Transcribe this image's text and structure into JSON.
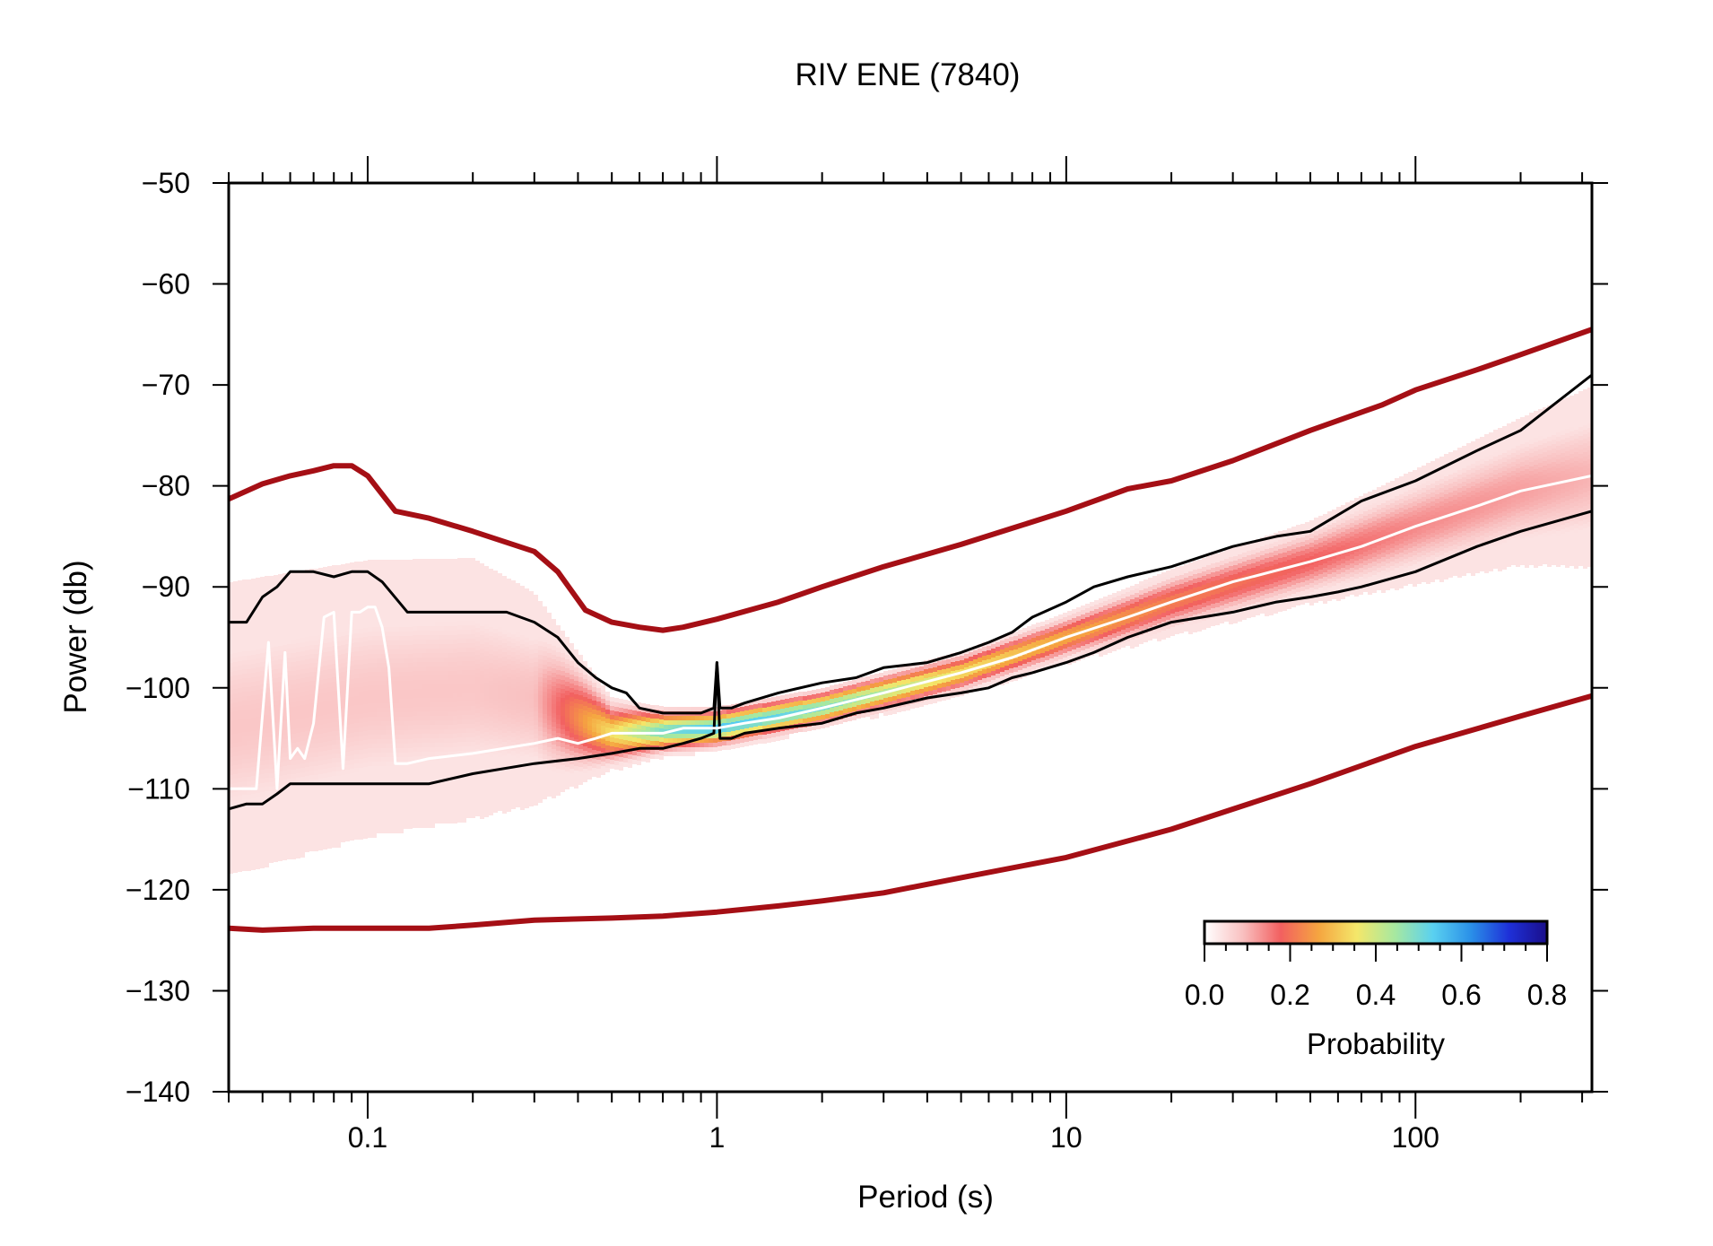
{
  "chart_data": {
    "type": "line",
    "title": "RIV ENE (7840)",
    "xlabel": "Period (s)",
    "ylabel": "Power (db)",
    "xscale": "log",
    "xlim": [
      0.04,
      320
    ],
    "ylim": [
      -140,
      -50
    ],
    "grid": false,
    "x_tick_labels": [
      "0.1",
      "1",
      "10",
      "100"
    ],
    "x_tick_values": [
      0.1,
      1,
      10,
      100
    ],
    "y_tick_labels": [
      "−50",
      "−60",
      "−70",
      "−80",
      "−90",
      "−100",
      "−110",
      "−120",
      "−130",
      "−140"
    ],
    "y_tick_values": [
      -50,
      -60,
      -70,
      -80,
      -90,
      -100,
      -110,
      -120,
      -130,
      -140
    ],
    "colorbar": {
      "title": "Probability",
      "position": "bottom-right",
      "range": [
        0,
        0.8
      ],
      "tick_labels": [
        "0.0",
        "0.2",
        "0.4",
        "0.6",
        "0.8"
      ],
      "tick_values": [
        0,
        0.2,
        0.4,
        0.6,
        0.8
      ],
      "colors": [
        "#ffffff",
        "#f9c1c1",
        "#f26060",
        "#f5a540",
        "#f4e76a",
        "#a7e8a0",
        "#5ad1f0",
        "#2a90e8",
        "#1e30d8",
        "#1a0e8a"
      ]
    },
    "series": [
      {
        "role": "high-noise-model",
        "color": "#a50f15",
        "x": [
          0.04,
          0.05,
          0.06,
          0.07,
          0.08,
          0.09,
          0.1,
          0.12,
          0.15,
          0.2,
          0.3,
          0.35,
          0.42,
          0.5,
          0.6,
          0.7,
          0.8,
          1,
          1.5,
          2,
          3,
          5,
          7,
          10,
          15,
          20,
          30,
          50,
          80,
          100,
          150,
          200,
          320
        ],
        "values": [
          -81.3,
          -79.8,
          -79,
          -78.5,
          -78,
          -78,
          -79,
          -82.5,
          -83.2,
          -84.5,
          -86.5,
          -88.5,
          -92.3,
          -93.5,
          -94,
          -94.3,
          -94,
          -93.2,
          -91.5,
          -90,
          -88,
          -85.8,
          -84.2,
          -82.5,
          -80.3,
          -79.5,
          -77.5,
          -74.5,
          -72,
          -70.5,
          -68.5,
          -67,
          -64.5
        ]
      },
      {
        "role": "low-noise-model",
        "color": "#a50f15",
        "x": [
          0.04,
          0.05,
          0.07,
          0.1,
          0.15,
          0.2,
          0.3,
          0.5,
          0.7,
          1,
          1.5,
          2,
          3,
          5,
          10,
          20,
          50,
          100,
          200,
          320
        ],
        "values": [
          -123.8,
          -124,
          -123.8,
          -123.8,
          -123.8,
          -123.5,
          -123,
          -122.8,
          -122.6,
          -122.2,
          -121.6,
          -121.1,
          -120.3,
          -118.8,
          -116.8,
          -114,
          -109.5,
          -105.8,
          -102.8,
          -100.8
        ]
      },
      {
        "role": "upper-percentile",
        "color": "#000000",
        "x": [
          0.04,
          0.045,
          0.05,
          0.055,
          0.06,
          0.07,
          0.08,
          0.09,
          0.1,
          0.11,
          0.13,
          0.16,
          0.2,
          0.25,
          0.3,
          0.35,
          0.4,
          0.45,
          0.5,
          0.55,
          0.6,
          0.7,
          0.8,
          0.9,
          0.98,
          1.0,
          1.02,
          1.1,
          1.2,
          1.5,
          2,
          2.5,
          3,
          4,
          5,
          6,
          7,
          8,
          10,
          12,
          15,
          20,
          30,
          40,
          50,
          70,
          100,
          150,
          200,
          320
        ],
        "values": [
          -93.5,
          -93.5,
          -91,
          -90,
          -88.5,
          -88.5,
          -89,
          -88.5,
          -88.5,
          -89.5,
          -92.5,
          -92.5,
          -92.5,
          -92.5,
          -93.5,
          -95,
          -97.5,
          -99,
          -100,
          -100.5,
          -102,
          -102.5,
          -102.5,
          -102.5,
          -102,
          -97.5,
          -102,
          -102,
          -101.5,
          -100.5,
          -99.5,
          -99,
          -98,
          -97.5,
          -96.5,
          -95.5,
          -94.5,
          -93,
          -91.5,
          -90,
          -89,
          -88,
          -86,
          -85,
          -84.5,
          -81.5,
          -79.5,
          -76.5,
          -74.5,
          -69
        ]
      },
      {
        "role": "lower-percentile",
        "color": "#000000",
        "x": [
          0.04,
          0.045,
          0.05,
          0.055,
          0.06,
          0.07,
          0.08,
          0.1,
          0.12,
          0.15,
          0.2,
          0.3,
          0.4,
          0.5,
          0.6,
          0.7,
          0.8,
          0.9,
          0.98,
          1.0,
          1.02,
          1.1,
          1.2,
          1.5,
          2,
          2.5,
          3,
          4,
          5,
          6,
          7,
          8,
          10,
          12,
          15,
          20,
          30,
          40,
          50,
          60,
          70,
          100,
          150,
          200,
          320
        ],
        "values": [
          -112,
          -111.5,
          -111.5,
          -110.5,
          -109.5,
          -109.5,
          -109.5,
          -109.5,
          -109.5,
          -109.5,
          -108.5,
          -107.5,
          -107,
          -106.5,
          -106,
          -106,
          -105.5,
          -105,
          -104.5,
          -97.5,
          -105,
          -105,
          -104.5,
          -104,
          -103.5,
          -102.5,
          -102,
          -101,
          -100.5,
          -100,
          -99,
          -98.5,
          -97.5,
          -96.5,
          -95,
          -93.5,
          -92.5,
          -91.5,
          -91,
          -90.5,
          -90,
          -88.5,
          -86,
          -84.5,
          -82.5
        ]
      },
      {
        "role": "mode",
        "color": "#ffffff",
        "x": [
          0.04,
          0.044,
          0.048,
          0.052,
          0.055,
          0.058,
          0.06,
          0.063,
          0.066,
          0.07,
          0.075,
          0.08,
          0.085,
          0.09,
          0.095,
          0.1,
          0.105,
          0.11,
          0.115,
          0.12,
          0.13,
          0.15,
          0.2,
          0.3,
          0.35,
          0.4,
          0.45,
          0.5,
          0.55,
          0.6,
          0.7,
          0.8,
          0.9,
          1,
          1.2,
          1.5,
          2,
          3,
          5,
          7,
          10,
          15,
          20,
          30,
          50,
          70,
          100,
          150,
          200,
          320
        ],
        "values": [
          -110,
          -110,
          -110,
          -95.5,
          -110,
          -96.5,
          -107,
          -106,
          -107,
          -103.5,
          -93,
          -92.5,
          -108,
          -92.5,
          -92.5,
          -92,
          -92,
          -94,
          -98,
          -107.5,
          -107.5,
          -107,
          -106.5,
          -105.5,
          -105,
          -105.5,
          -105,
          -104.5,
          -104.5,
          -104.5,
          -104.5,
          -104,
          -104,
          -104,
          -103.5,
          -103,
          -102,
          -100.5,
          -98.5,
          -97,
          -95,
          -93,
          -91.5,
          -89.5,
          -87.5,
          -86,
          -84,
          -82,
          -80.5,
          -79
        ]
      }
    ],
    "density_band": {
      "description_x": [
        0.04,
        0.1,
        0.2,
        0.3,
        0.5,
        0.7,
        1,
        2,
        5,
        10,
        20,
        50,
        100,
        200,
        320
      ],
      "center": [
        -104,
        -101,
        -100,
        -101,
        -104.5,
        -104.3,
        -104,
        -102,
        -98.5,
        -95,
        -91.5,
        -87.5,
        -84,
        -80.5,
        -79
      ],
      "half_width": [
        9,
        8.5,
        8,
        6.5,
        2.2,
        1.5,
        1.3,
        1.2,
        1.3,
        1.5,
        2,
        2.5,
        3.5,
        4.5,
        5.5
      ],
      "peak_probability": [
        0.08,
        0.08,
        0.08,
        0.09,
        0.35,
        0.5,
        0.55,
        0.5,
        0.35,
        0.28,
        0.22,
        0.18,
        0.14,
        0.12,
        0.1
      ]
    }
  }
}
